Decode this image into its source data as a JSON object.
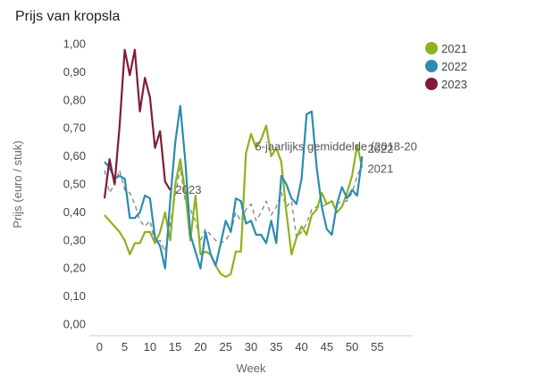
{
  "chart_data": {
    "type": "line",
    "title": "Prijs van kropsla",
    "xlabel": "Week",
    "ylabel": "Prijs (euro / stuk)",
    "xlim": [
      -2,
      62
    ],
    "ylim": [
      -0.04,
      1.04
    ],
    "xticks": [
      0,
      5,
      10,
      15,
      20,
      25,
      30,
      35,
      40,
      45,
      50,
      55
    ],
    "yticks": [
      "0,00",
      "0,10",
      "0,20",
      "0,30",
      "0,40",
      "0,50",
      "0,60",
      "0,70",
      "0,80",
      "0,90",
      "1,00"
    ],
    "series": [
      {
        "name": "2021",
        "color": "#8db31c",
        "dash": false,
        "label": "2021",
        "x": [
          1,
          2,
          3,
          4,
          5,
          6,
          7,
          8,
          9,
          10,
          11,
          12,
          13,
          14,
          15,
          16,
          17,
          18,
          19,
          20,
          21,
          22,
          23,
          24,
          25,
          26,
          27,
          28,
          29,
          30,
          31,
          32,
          33,
          34,
          35,
          36,
          37,
          38,
          39,
          40,
          41,
          42,
          43,
          44,
          45,
          46,
          47,
          48,
          49,
          50,
          51,
          52
        ],
        "values": [
          0.39,
          0.37,
          0.35,
          0.33,
          0.3,
          0.25,
          0.29,
          0.29,
          0.33,
          0.33,
          0.29,
          0.33,
          0.4,
          0.3,
          0.5,
          0.59,
          0.47,
          0.3,
          0.46,
          0.25,
          0.26,
          0.25,
          0.21,
          0.18,
          0.17,
          0.18,
          0.26,
          0.26,
          0.61,
          0.68,
          0.63,
          0.66,
          0.71,
          0.6,
          0.63,
          0.58,
          0.4,
          0.25,
          0.31,
          0.35,
          0.32,
          0.39,
          0.41,
          0.47,
          0.43,
          0.44,
          0.4,
          0.42,
          0.47,
          0.53,
          0.64,
          0.56
        ]
      },
      {
        "name": "2022",
        "color": "#2b8bb0",
        "dash": false,
        "label": "2022",
        "x": [
          1,
          2,
          3,
          4,
          5,
          6,
          7,
          8,
          9,
          10,
          11,
          12,
          13,
          14,
          15,
          16,
          17,
          18,
          19,
          20,
          21,
          22,
          23,
          24,
          25,
          26,
          27,
          28,
          29,
          30,
          31,
          32,
          33,
          34,
          35,
          36,
          37,
          38,
          39,
          40,
          41,
          42,
          43,
          44,
          45,
          46,
          47,
          48,
          49,
          50,
          51,
          52
        ],
        "values": [
          0.58,
          0.56,
          0.52,
          0.53,
          0.52,
          0.38,
          0.38,
          0.4,
          0.46,
          0.45,
          0.31,
          0.28,
          0.2,
          0.44,
          0.65,
          0.78,
          0.58,
          0.32,
          0.26,
          0.2,
          0.33,
          0.25,
          0.21,
          0.29,
          0.37,
          0.33,
          0.45,
          0.44,
          0.36,
          0.37,
          0.32,
          0.32,
          0.29,
          0.37,
          0.29,
          0.53,
          0.5,
          0.45,
          0.43,
          0.52,
          0.75,
          0.76,
          0.56,
          0.42,
          0.34,
          0.32,
          0.43,
          0.49,
          0.45,
          0.48,
          0.46,
          0.6
        ]
      },
      {
        "name": "2023",
        "color": "#7f1c3a",
        "dash": false,
        "label": "2023",
        "x": [
          1,
          2,
          3,
          4,
          5,
          6,
          7,
          8,
          9,
          10,
          11,
          12,
          13,
          14
        ],
        "values": [
          0.45,
          0.59,
          0.5,
          0.71,
          0.98,
          0.89,
          0.98,
          0.76,
          0.88,
          0.81,
          0.63,
          0.69,
          0.51,
          0.48
        ]
      },
      {
        "name": "5-jaarlijks gemiddelde (2018-20",
        "color": "#888888",
        "dash": true,
        "label": "5-jaarlijks gemiddelde (2018-20",
        "x": [
          1,
          2,
          3,
          4,
          5,
          6,
          7,
          8,
          9,
          10,
          11,
          12,
          13,
          14,
          15,
          16,
          17,
          18,
          19,
          20,
          21,
          22,
          23,
          24,
          25,
          26,
          27,
          28,
          29,
          30,
          31,
          32,
          33,
          34,
          35,
          36,
          37,
          38,
          39,
          40,
          41,
          42,
          43,
          44,
          45,
          46,
          47,
          48,
          49,
          50,
          51,
          52
        ],
        "values": [
          0.55,
          0.47,
          0.5,
          0.55,
          0.48,
          0.47,
          0.43,
          0.37,
          0.35,
          0.37,
          0.29,
          0.3,
          0.26,
          0.36,
          0.46,
          0.56,
          0.44,
          0.41,
          0.37,
          0.3,
          0.34,
          0.32,
          0.3,
          0.29,
          0.3,
          0.33,
          0.4,
          0.37,
          0.41,
          0.43,
          0.37,
          0.4,
          0.44,
          0.39,
          0.42,
          0.47,
          0.42,
          0.44,
          0.31,
          0.33,
          0.36,
          0.41,
          0.42,
          0.42,
          0.43,
          0.44,
          0.43,
          0.44,
          0.44,
          0.47,
          0.53,
          0.57
        ]
      }
    ],
    "legend": {
      "placement": "top-right",
      "entries": [
        "2021",
        "2022",
        "2023"
      ]
    },
    "grid": false
  }
}
